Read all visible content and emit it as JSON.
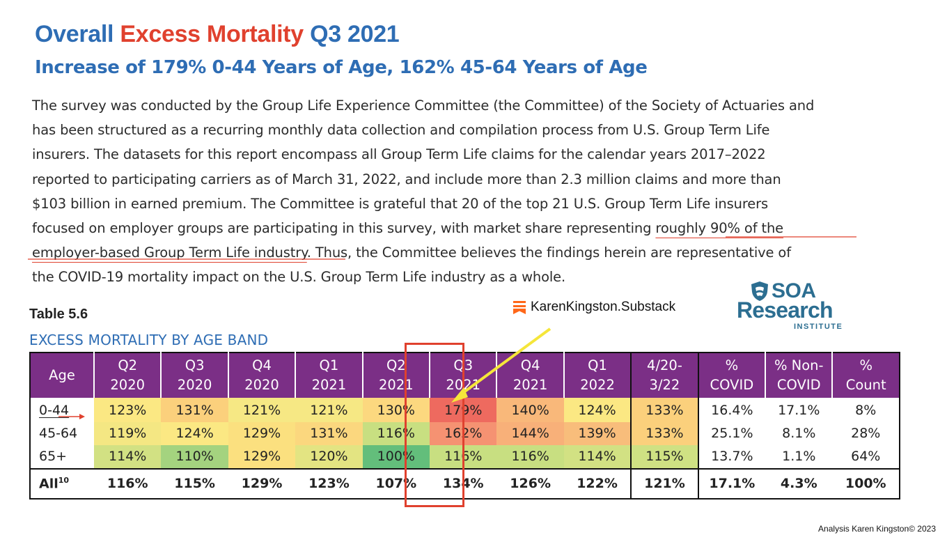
{
  "title": {
    "part1": "Overall ",
    "part2": "Excess Mortality",
    "part3": " Q3 2021"
  },
  "subtitle": "Increase of 179% 0-44 Years of Age, 162% 45-64 Years of Age",
  "body_lines": [
    "The survey was conducted by the Group Life Experience Committee (the Committee) of the Society of Actuaries and",
    "has been structured as a recurring monthly data collection and compilation process from U.S. Group Term Life",
    "insurers. The datasets for this report encompass all Group Term Life claims for the calendar years 2017–2022",
    "reported to participating carriers as of March 31, 2022, and include more than 2.3 million claims and more than",
    "$103 billion in earned premium. The Committee is grateful that 20 of the top 21 U.S. Group Term Life insurers"
  ],
  "body_line6_a": "focused on employer groups are participating in this survey, with market share representing ",
  "body_line6_b": "roughly 90% of the",
  "body_line7_a": "employer-based Group Term Life industry",
  "body_line7_b": ". Thus, the Committee believes the findings herein are representative of",
  "body_line8": "the COVID-19 mortality impact on the U.S. Group Term Life industry as a whole.",
  "table_label": "Table 5.6",
  "table_caption": "EXCESS MORTALITY BY AGE BAND",
  "credit": "KarenKingston.Substack",
  "logo": {
    "soa": "SOA",
    "research": "Research",
    "institute": "INSTITUTE"
  },
  "table": {
    "headers": [
      {
        "l1": "Age",
        "l2": ""
      },
      {
        "l1": "Q2",
        "l2": "2020"
      },
      {
        "l1": "Q3",
        "l2": "2020"
      },
      {
        "l1": "Q4",
        "l2": "2020"
      },
      {
        "l1": "Q1",
        "l2": "2021"
      },
      {
        "l1": "Q2",
        "l2": "2021"
      },
      {
        "l1": "Q3",
        "l2": "2021"
      },
      {
        "l1": "Q4",
        "l2": "2021"
      },
      {
        "l1": "Q1",
        "l2": "2022"
      },
      {
        "l1": "4/20-",
        "l2": "3/22"
      },
      {
        "l1": "%",
        "l2": "COVID"
      },
      {
        "l1": "% Non-",
        "l2": "COVID"
      },
      {
        "l1": "%",
        "l2": "Count"
      }
    ],
    "rows": [
      {
        "age": "0-44",
        "values": [
          "123%",
          "131%",
          "121%",
          "121%",
          "130%",
          "179%",
          "140%",
          "124%",
          "133%"
        ],
        "covid": "16.4%",
        "noncovid": "17.1%",
        "count": "8%"
      },
      {
        "age": "45-64",
        "values": [
          "119%",
          "124%",
          "129%",
          "131%",
          "116%",
          "162%",
          "144%",
          "139%",
          "133%"
        ],
        "covid": "25.1%",
        "noncovid": "8.1%",
        "count": "28%"
      },
      {
        "age": "65+",
        "values": [
          "114%",
          "110%",
          "129%",
          "120%",
          "100%",
          "116%",
          "116%",
          "114%",
          "115%"
        ],
        "covid": "13.7%",
        "noncovid": "1.1%",
        "count": "64%"
      }
    ],
    "all_row": {
      "age": "All",
      "age_sup": "10",
      "values": [
        "116%",
        "115%",
        "129%",
        "123%",
        "107%",
        "134%",
        "126%",
        "122%",
        "121%"
      ],
      "covid": "17.1%",
      "noncovid": "4.3%",
      "count": "100%"
    },
    "heat_colors": [
      [
        "#fbe883",
        "#fbd07c",
        "#f6e884",
        "#f6e884",
        "#fcd87f",
        "#ee6a5f",
        "#f9b87a",
        "#fbe883",
        "#fbd07c"
      ],
      [
        "#f4e783",
        "#fbe883",
        "#fbe07f",
        "#fbd77e",
        "#c8df81",
        "#f59272",
        "#f8b079",
        "#f8bd7b",
        "#fbd07c"
      ],
      [
        "#d2e183",
        "#a4d37f",
        "#fbe07f",
        "#e3e482",
        "#63be7b",
        "#c8df81",
        "#c8df81",
        "#d2e183",
        "#cfe183"
      ]
    ]
  },
  "colors": {
    "accent_red": "#e0412e",
    "title_blue": "#2e6db4",
    "header_purple": "#7b2f86",
    "arrow_yellow": "#f5e63a",
    "substack_orange": "#ff6719"
  },
  "footer": "Analysis Karen Kingston© 2023"
}
